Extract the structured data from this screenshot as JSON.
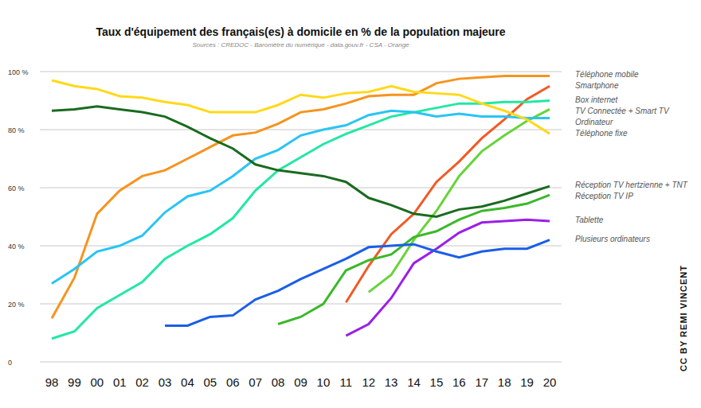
{
  "chart_data": {
    "type": "line",
    "title": "Taux d'équipement des français(es) à domicile en % de la population majeure",
    "subtitle": "Sources : CREDOC - Baromètre du numérique - data.gouv.fr - CSA - Orange",
    "annotation": "CC BY REMI VINCENT",
    "categories": [
      "98",
      "99",
      "00",
      "01",
      "02",
      "03",
      "04",
      "05",
      "06",
      "07",
      "08",
      "09",
      "10",
      "11",
      "12",
      "13",
      "14",
      "15",
      "16",
      "17",
      "18",
      "19",
      "20"
    ],
    "series": [
      {
        "name": "Téléphone mobile",
        "color": "#f7931e",
        "values": [
          15,
          29,
          51,
          59,
          64,
          66,
          70,
          74,
          78,
          79,
          82,
          86,
          87,
          89,
          91.5,
          92,
          92,
          96,
          97.5,
          98,
          98.5,
          98.5,
          98.5
        ]
      },
      {
        "name": "Smartphone",
        "color": "#f15a24",
        "values": [
          null,
          null,
          null,
          null,
          null,
          null,
          null,
          null,
          null,
          null,
          null,
          null,
          null,
          20.5,
          33,
          44,
          51,
          62,
          69,
          77,
          83.5,
          90.5,
          95
        ]
      },
      {
        "name": "Box internet",
        "color": "#22e8a3",
        "values": [
          8,
          10.5,
          18.5,
          23,
          27.5,
          35.5,
          40,
          44,
          49.5,
          59,
          66,
          70.5,
          75,
          78.5,
          81.5,
          84.5,
          86,
          87.5,
          89,
          89,
          89.5,
          89.5,
          90
        ]
      },
      {
        "name": "TV Connectée + Smart TV",
        "color": "#66d43a",
        "values": [
          null,
          null,
          null,
          null,
          null,
          null,
          null,
          null,
          null,
          null,
          null,
          null,
          null,
          null,
          24,
          30,
          42,
          52,
          64,
          72.5,
          78,
          83,
          87
        ]
      },
      {
        "name": "Ordinateur",
        "color": "#29c4f4",
        "values": [
          27,
          32,
          38,
          40,
          43.5,
          51.5,
          57,
          59,
          64,
          70,
          73,
          78,
          80,
          81.5,
          85,
          86.5,
          86,
          84.5,
          85.5,
          84.5,
          84.5,
          84,
          84
        ]
      },
      {
        "name": "Téléphone fixe",
        "color": "#ffd91a",
        "values": [
          97,
          95,
          94,
          91.5,
          91,
          89.5,
          88.5,
          86,
          86,
          86,
          88.5,
          92,
          91,
          92.5,
          93,
          95,
          93,
          92.5,
          92,
          89,
          86.5,
          83.5,
          78.6
        ]
      },
      {
        "name": "Réception TV hertzienne + TNT",
        "color": "#1a6b1f",
        "values": [
          86.5,
          87,
          88,
          87,
          86,
          84.5,
          81,
          77,
          73.5,
          68,
          66,
          65,
          64,
          62,
          56.5,
          54,
          51,
          50,
          52.5,
          53.5,
          55.5,
          58,
          60.5
        ]
      },
      {
        "name": "Réception TV IP",
        "color": "#3bb82a",
        "values": [
          null,
          null,
          null,
          null,
          null,
          null,
          null,
          null,
          null,
          null,
          13,
          15.5,
          20,
          31.5,
          35,
          37,
          43,
          45,
          49,
          52,
          53,
          54.5,
          57.5
        ]
      },
      {
        "name": "Tablette",
        "color": "#9b1fe8",
        "values": [
          null,
          null,
          null,
          null,
          null,
          null,
          null,
          null,
          null,
          null,
          null,
          null,
          null,
          9,
          13,
          22,
          34,
          39,
          44.5,
          48,
          48.5,
          49,
          48.5
        ]
      },
      {
        "name": "Plusieurs ordinateurs",
        "color": "#1a5ee8",
        "values": [
          null,
          null,
          null,
          null,
          null,
          12.5,
          12.5,
          15.5,
          16,
          21.5,
          24.5,
          28.5,
          32,
          35.5,
          39.5,
          40,
          40.5,
          38,
          36,
          38,
          39,
          39,
          42
        ]
      }
    ],
    "ylim": [
      0,
      100
    ],
    "yticks": [
      0,
      {
        "value": 20,
        "label": "20 %"
      },
      {
        "value": 40,
        "label": "40 %"
      },
      {
        "value": 60,
        "label": "60 %"
      },
      {
        "value": 80,
        "label": "80 %"
      },
      {
        "value": 100,
        "label": "100 %"
      }
    ],
    "grid": true,
    "legend": "right"
  }
}
